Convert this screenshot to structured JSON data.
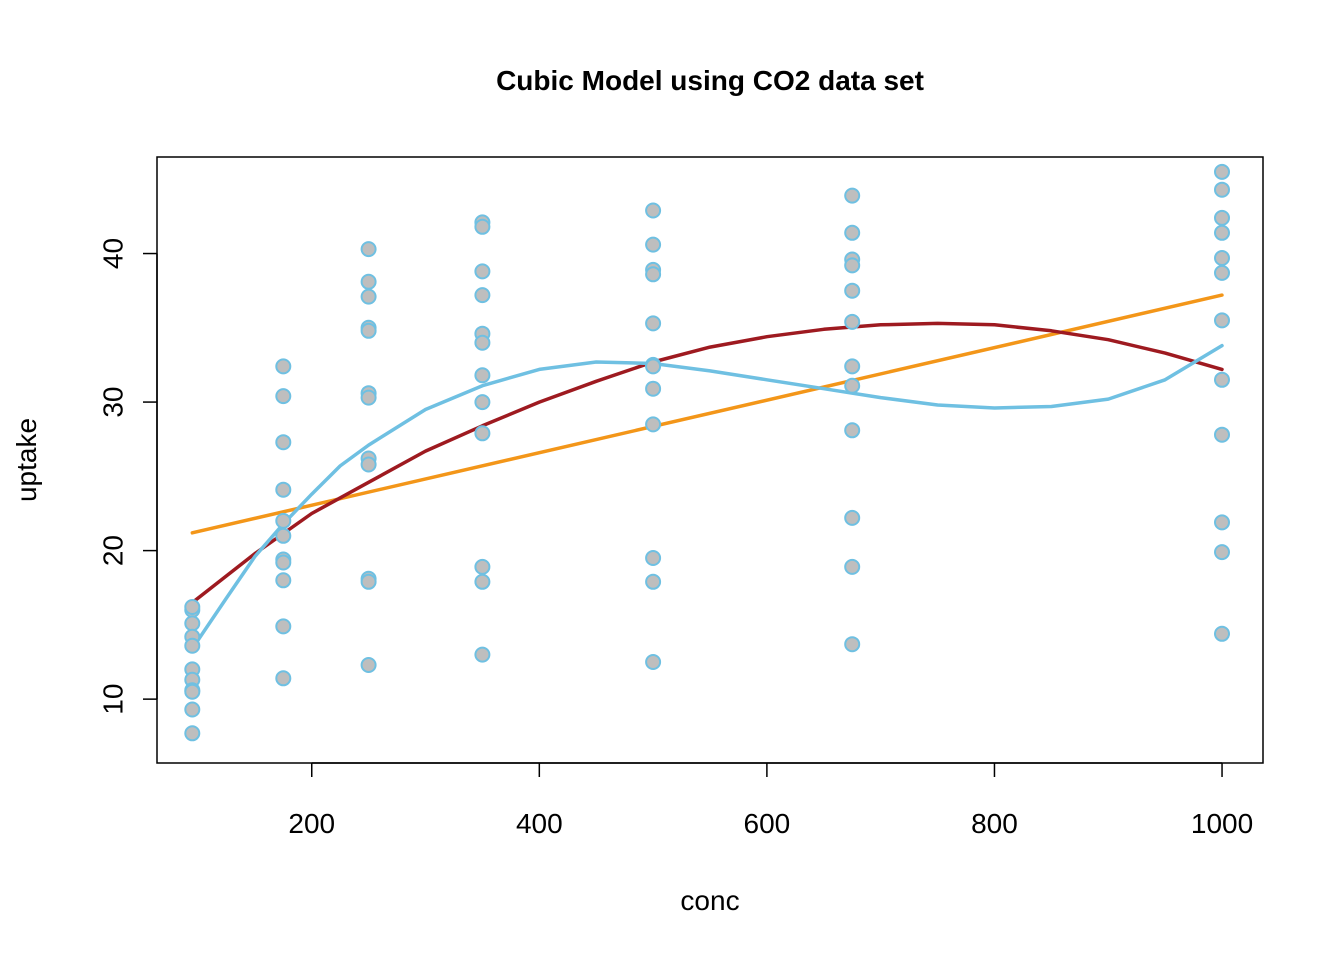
{
  "chart_data": {
    "type": "scatter",
    "title": "Cubic Model using CO2 data set",
    "xlabel": "conc",
    "ylabel": "uptake",
    "xlim": [
      64,
      1036
    ],
    "ylim": [
      5.7,
      46.5
    ],
    "xticks": [
      200,
      400,
      600,
      800,
      1000
    ],
    "yticks": [
      10,
      20,
      30,
      40
    ],
    "grid": false,
    "points": {
      "fill": "#bebebe",
      "stroke": "#6fc0e2",
      "data": [
        {
          "x": 95,
          "y": 16.0
        },
        {
          "x": 95,
          "y": 16.2
        },
        {
          "x": 95,
          "y": 15.1
        },
        {
          "x": 95,
          "y": 14.2
        },
        {
          "x": 95,
          "y": 13.6
        },
        {
          "x": 95,
          "y": 12.0
        },
        {
          "x": 95,
          "y": 11.3
        },
        {
          "x": 95,
          "y": 10.6
        },
        {
          "x": 95,
          "y": 10.5
        },
        {
          "x": 95,
          "y": 9.3
        },
        {
          "x": 95,
          "y": 7.7
        },
        {
          "x": 175,
          "y": 32.4
        },
        {
          "x": 175,
          "y": 30.4
        },
        {
          "x": 175,
          "y": 27.3
        },
        {
          "x": 175,
          "y": 24.1
        },
        {
          "x": 175,
          "y": 22.0
        },
        {
          "x": 175,
          "y": 21.0
        },
        {
          "x": 175,
          "y": 19.4
        },
        {
          "x": 175,
          "y": 19.2
        },
        {
          "x": 175,
          "y": 18.0
        },
        {
          "x": 175,
          "y": 14.9
        },
        {
          "x": 175,
          "y": 11.4
        },
        {
          "x": 250,
          "y": 40.3
        },
        {
          "x": 250,
          "y": 38.1
        },
        {
          "x": 250,
          "y": 37.1
        },
        {
          "x": 250,
          "y": 35.0
        },
        {
          "x": 250,
          "y": 34.8
        },
        {
          "x": 250,
          "y": 30.6
        },
        {
          "x": 250,
          "y": 30.3
        },
        {
          "x": 250,
          "y": 26.2
        },
        {
          "x": 250,
          "y": 25.8
        },
        {
          "x": 250,
          "y": 18.1
        },
        {
          "x": 250,
          "y": 17.9
        },
        {
          "x": 250,
          "y": 12.3
        },
        {
          "x": 350,
          "y": 42.1
        },
        {
          "x": 350,
          "y": 41.8
        },
        {
          "x": 350,
          "y": 38.8
        },
        {
          "x": 350,
          "y": 37.2
        },
        {
          "x": 350,
          "y": 34.6
        },
        {
          "x": 350,
          "y": 34.0
        },
        {
          "x": 350,
          "y": 31.8
        },
        {
          "x": 350,
          "y": 30.0
        },
        {
          "x": 350,
          "y": 27.9
        },
        {
          "x": 350,
          "y": 18.9
        },
        {
          "x": 350,
          "y": 17.9
        },
        {
          "x": 350,
          "y": 13.0
        },
        {
          "x": 500,
          "y": 42.9
        },
        {
          "x": 500,
          "y": 40.6
        },
        {
          "x": 500,
          "y": 38.9
        },
        {
          "x": 500,
          "y": 38.6
        },
        {
          "x": 500,
          "y": 35.3
        },
        {
          "x": 500,
          "y": 32.5
        },
        {
          "x": 500,
          "y": 32.4
        },
        {
          "x": 500,
          "y": 30.9
        },
        {
          "x": 500,
          "y": 28.5
        },
        {
          "x": 500,
          "y": 19.5
        },
        {
          "x": 500,
          "y": 17.9
        },
        {
          "x": 500,
          "y": 12.5
        },
        {
          "x": 675,
          "y": 43.9
        },
        {
          "x": 675,
          "y": 41.4
        },
        {
          "x": 675,
          "y": 39.6
        },
        {
          "x": 675,
          "y": 39.2
        },
        {
          "x": 675,
          "y": 37.5
        },
        {
          "x": 675,
          "y": 35.4
        },
        {
          "x": 675,
          "y": 32.4
        },
        {
          "x": 675,
          "y": 31.1
        },
        {
          "x": 675,
          "y": 28.1
        },
        {
          "x": 675,
          "y": 22.2
        },
        {
          "x": 675,
          "y": 18.9
        },
        {
          "x": 675,
          "y": 13.7
        },
        {
          "x": 1000,
          "y": 45.5
        },
        {
          "x": 1000,
          "y": 44.3
        },
        {
          "x": 1000,
          "y": 42.4
        },
        {
          "x": 1000,
          "y": 41.4
        },
        {
          "x": 1000,
          "y": 39.7
        },
        {
          "x": 1000,
          "y": 38.7
        },
        {
          "x": 1000,
          "y": 35.5
        },
        {
          "x": 1000,
          "y": 31.5
        },
        {
          "x": 1000,
          "y": 27.8
        },
        {
          "x": 1000,
          "y": 21.9
        },
        {
          "x": 1000,
          "y": 19.9
        },
        {
          "x": 1000,
          "y": 14.4
        }
      ]
    },
    "series": [
      {
        "color": "#f39619",
        "x": [
          95,
          1000
        ],
        "y": [
          21.2,
          37.2
        ]
      },
      {
        "color": "#9e1a20",
        "x": [
          95,
          150,
          200,
          250,
          300,
          350,
          400,
          450,
          500,
          550,
          600,
          650,
          700,
          750,
          800,
          850,
          900,
          950,
          1000
        ],
        "y": [
          16.5,
          19.8,
          22.5,
          24.6,
          26.7,
          28.4,
          30.0,
          31.4,
          32.7,
          33.7,
          34.4,
          34.9,
          35.2,
          35.3,
          35.2,
          34.8,
          34.2,
          33.3,
          32.2
        ]
      },
      {
        "color": "#6fc0e2",
        "x": [
          95,
          125,
          150,
          175,
          200,
          225,
          250,
          300,
          350,
          400,
          450,
          500,
          550,
          600,
          650,
          700,
          750,
          800,
          850,
          900,
          950,
          1000
        ],
        "y": [
          13.4,
          16.8,
          19.6,
          21.8,
          23.8,
          25.7,
          27.1,
          29.5,
          31.1,
          32.2,
          32.7,
          32.6,
          32.1,
          31.5,
          30.9,
          30.3,
          29.8,
          29.6,
          29.7,
          30.2,
          31.5,
          33.8
        ]
      }
    ]
  }
}
